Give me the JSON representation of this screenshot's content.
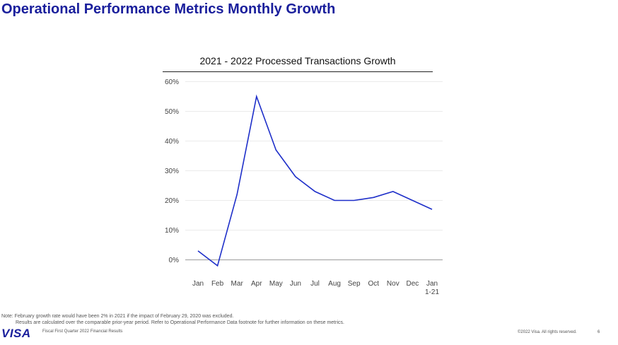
{
  "page": {
    "title": "Operational Performance Metrics Monthly Growth"
  },
  "chart_data": {
    "type": "line",
    "title": "2021 - 2022 Processed Transactions Growth",
    "xlabel": "",
    "ylabel": "",
    "ylim": [
      -5,
      60
    ],
    "y_ticks": [
      "60%",
      "50%",
      "40%",
      "30%",
      "20%",
      "10%",
      "0%"
    ],
    "y_tick_values": [
      60,
      50,
      40,
      30,
      20,
      10,
      0
    ],
    "grid": true,
    "categories": [
      "Jan",
      "Feb",
      "Mar",
      "Apr",
      "May",
      "Jun",
      "Jul",
      "Aug",
      "Sep",
      "Oct",
      "Nov",
      "Dec",
      "Jan"
    ],
    "category_sublabels": [
      "",
      "",
      "",
      "",
      "",
      "",
      "",
      "",
      "",
      "",
      "",
      "",
      "1-21"
    ],
    "series": [
      {
        "name": "Processed Transactions Growth",
        "color": "#1e2fc9",
        "values": [
          3,
          -2,
          22,
          55,
          37,
          28,
          23,
          20,
          20,
          21,
          23,
          20,
          17
        ]
      }
    ]
  },
  "footnote": {
    "line1": "Note: February growth rate would have been 2% in 2021 if the impact of February 29, 2020 was excluded.",
    "line2": "Results are calculated over the comparable prior-year period. Refer to Operational Performance Data footnote for further information on these metrics."
  },
  "footer": {
    "logo_text": "VISA",
    "left_text": "Fiscal First Quarter 2022 Financial Results",
    "right_text": "©2022 Visa. All rights reserved.",
    "page_number": "6"
  },
  "colors": {
    "brand": "#1a1f9c",
    "series": "#1e2fc9",
    "grid": "#e4e4e4",
    "zero_line": "#aaaaaa"
  }
}
